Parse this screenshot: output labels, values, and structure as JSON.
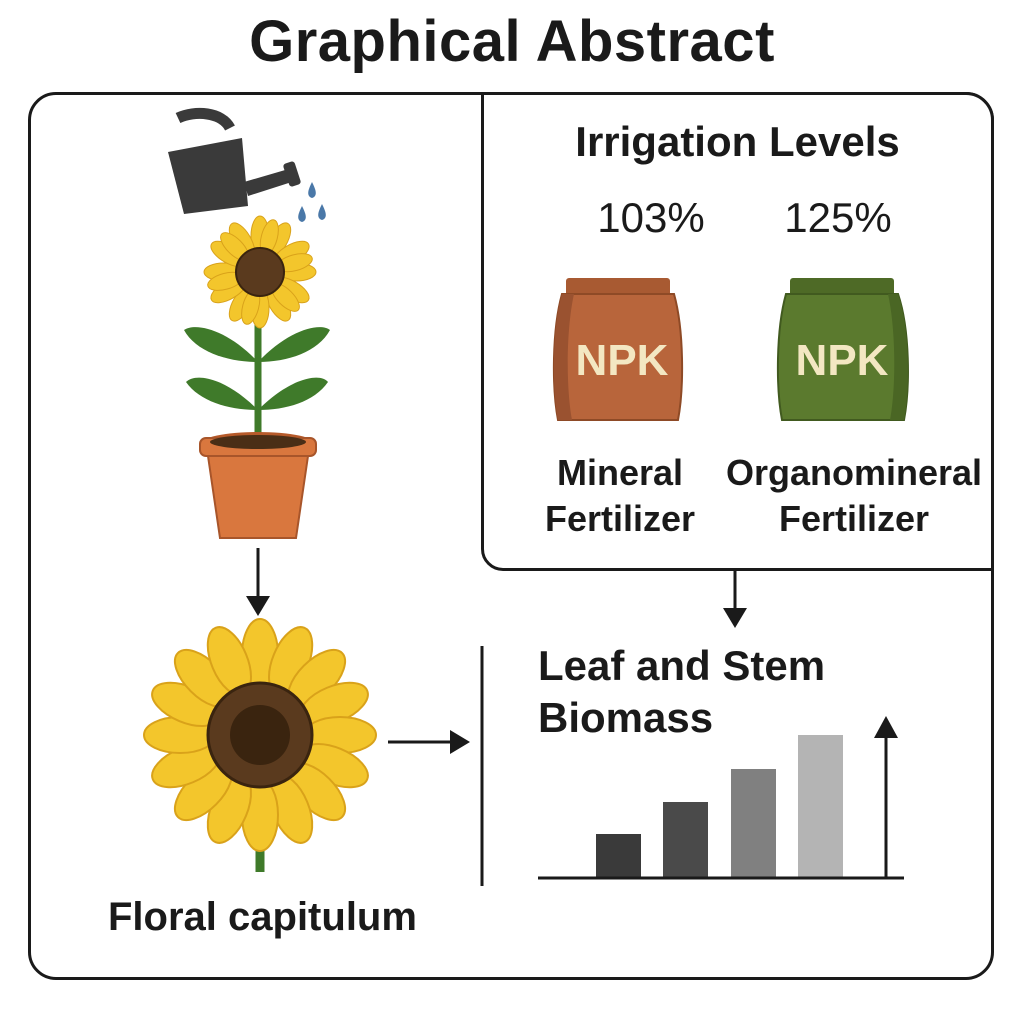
{
  "title": "Graphical Abstract",
  "irrigation": {
    "title": "Irrigation Levels",
    "levels": [
      "103%",
      "125%"
    ]
  },
  "fertilizers": [
    {
      "bag_label": "NPK",
      "name_line1": "Mineral",
      "name_line2": "Fertilizer",
      "color": "#b8653b"
    },
    {
      "bag_label": "NPK",
      "name_line1": "Organomineral",
      "name_line2": "Fertilizer",
      "color": "#5b7a2e"
    }
  ],
  "biomass": {
    "title": "Leaf and Stem Biomass"
  },
  "floral_label": "Floral capitulum",
  "icons": [
    "watering-can-icon",
    "water-drops-icon",
    "potted-sunflower-icon",
    "sunflower-head-icon",
    "npk-bag-icon",
    "bar-chart-icon"
  ],
  "colors": {
    "petal": "#f3c62c",
    "disc": "#5a3a1e",
    "leaf": "#3f7a2a",
    "pot": "#d9773e",
    "can": "#3a3a3a",
    "drop": "#4a78a8",
    "bars": [
      "#3a3a3a",
      "#4a4a4a",
      "#808080",
      "#b4b4b4"
    ]
  }
}
